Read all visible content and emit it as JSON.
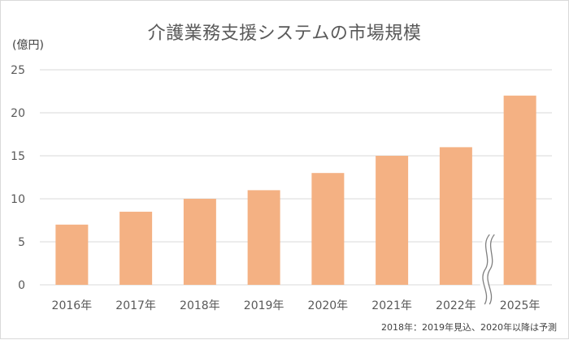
{
  "chart_data": {
    "type": "bar",
    "title": "介護業務支援システムの市場規模",
    "ylabel": "(億円)",
    "xlabel": "",
    "categories": [
      "2016年",
      "2017年",
      "2018年",
      "2019年",
      "2020年",
      "2021年",
      "2022年",
      "2025年"
    ],
    "values": [
      7,
      8.5,
      10,
      11,
      13,
      15,
      16,
      22
    ],
    "ylim": [
      0,
      25
    ],
    "yticks": [
      0,
      5,
      10,
      15,
      20,
      25
    ],
    "grid": true,
    "axis_break_between": [
      "2022年",
      "2025年"
    ],
    "bar_color": "#f4b183",
    "grid_color": "#d9d9d9",
    "footnote": "2018年：2019年見込、2020年以降は予測"
  }
}
